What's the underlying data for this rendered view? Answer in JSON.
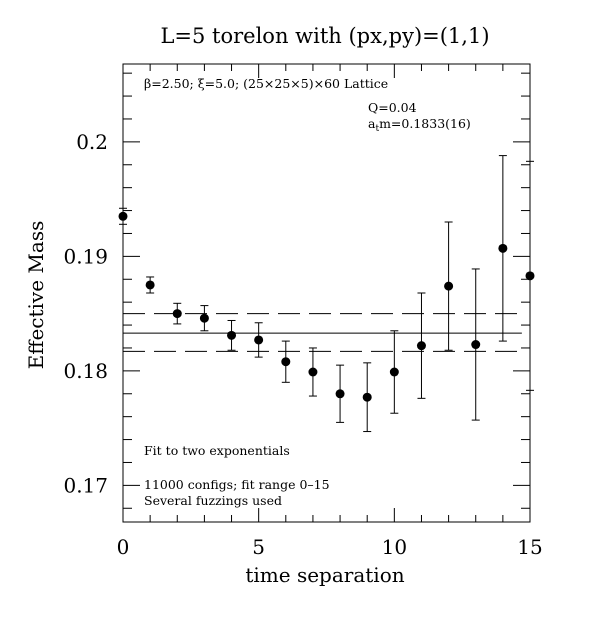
{
  "chart_data": {
    "type": "scatter",
    "title": "L=5 torelon with (px,py)=(1,1)",
    "xlabel": "time separation",
    "ylabel": "Effective Mass",
    "xlim": [
      0,
      15
    ],
    "ylim": [
      0.1668,
      0.2068
    ],
    "xticks": [
      0,
      5,
      10,
      15
    ],
    "xtick_labels": [
      "0",
      "5",
      "10",
      "15"
    ],
    "yticks": [
      0.17,
      0.18,
      0.19,
      0.2
    ],
    "ytick_labels": [
      "0.17",
      "0.18",
      "0.19",
      "0.2"
    ],
    "grid": false,
    "annotations": {
      "lattice": "β=2.50; ξ=5.0; (25×25×5)×60 Lattice",
      "q_value": "Q=0.04",
      "fit_mass": "a",
      "fit_mass_sub": "t",
      "fit_mass_tail": "m=0.1833(16)",
      "fit_method": "Fit to two exponentials",
      "configs": "11000 configs; fit range 0–15",
      "fuzzing": "Several fuzzings used"
    },
    "series": [
      {
        "points": [
          {
            "x": 0,
            "y": 0.1935,
            "err": 0.0007
          },
          {
            "x": 1,
            "y": 0.1875,
            "err": 0.0007
          },
          {
            "x": 2,
            "y": 0.185,
            "err": 0.0009
          },
          {
            "x": 3,
            "y": 0.1846,
            "err": 0.0011
          },
          {
            "x": 4,
            "y": 0.1831,
            "err": 0.0013
          },
          {
            "x": 5,
            "y": 0.1827,
            "err": 0.0015
          },
          {
            "x": 6,
            "y": 0.1808,
            "err": 0.0018
          },
          {
            "x": 7,
            "y": 0.1799,
            "err": 0.0021
          },
          {
            "x": 8,
            "y": 0.178,
            "err": 0.0025
          },
          {
            "x": 9,
            "y": 0.1777,
            "err": 0.003
          },
          {
            "x": 10,
            "y": 0.1799,
            "err": 0.0036
          },
          {
            "x": 11,
            "y": 0.1822,
            "err": 0.0046
          },
          {
            "x": 12,
            "y": 0.1874,
            "err": 0.0056
          },
          {
            "x": 13,
            "y": 0.1823,
            "err": 0.0066
          },
          {
            "x": 14,
            "y": 0.1907,
            "err": 0.0081
          },
          {
            "x": 15,
            "y": 0.1883,
            "err": 0.01
          }
        ]
      }
    ],
    "fit": {
      "value": 0.1833,
      "upper": 0.185,
      "lower": 0.1817
    }
  }
}
